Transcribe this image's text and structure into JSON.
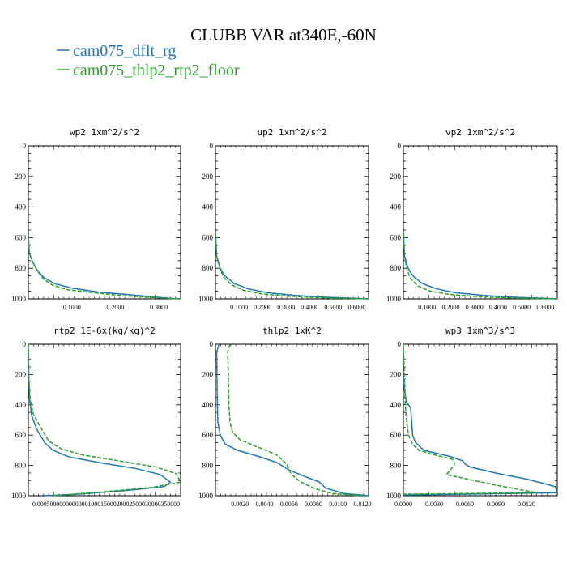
{
  "title": "CLUBB VAR at340E,-60N",
  "legend": [
    {
      "label": "cam075_dflt_rg",
      "color": "#1f77b4"
    },
    {
      "label": "cam075_thlp2_rtp2_floor",
      "color": "#2ca02c"
    }
  ],
  "chart_data": [
    {
      "type": "line",
      "title": "wp2  1xm^2/s^2",
      "yticks": [
        "0",
        "200",
        "400",
        "600",
        "800",
        "1000"
      ],
      "xticks": [
        "0.1000",
        "0.2000",
        "0.3000"
      ],
      "xlim": [
        0,
        0.35
      ],
      "ylim": [
        0,
        1000
      ],
      "series": [
        {
          "name": "cam075_dflt_rg",
          "style": "solid",
          "x": [
            0,
            0.002,
            0.01,
            0.02,
            0.035,
            0.06,
            0.1,
            0.16,
            0.24,
            0.3,
            0.34
          ],
          "y": [
            580,
            700,
            760,
            810,
            860,
            900,
            930,
            955,
            975,
            990,
            1000
          ]
        },
        {
          "name": "cam075_thlp2_rtp2_floor",
          "style": "dashed",
          "x": [
            0,
            0.002,
            0.01,
            0.02,
            0.035,
            0.055,
            0.09,
            0.15,
            0.22,
            0.3,
            0.35
          ],
          "y": [
            580,
            700,
            760,
            815,
            870,
            910,
            940,
            960,
            980,
            993,
            1000
          ]
        }
      ]
    },
    {
      "type": "line",
      "title": "up2  1xm^2/s^2",
      "yticks": [
        "0",
        "200",
        "400",
        "600",
        "800",
        "1000"
      ],
      "xticks": [
        "0.1000",
        "0.2000",
        "0.3000",
        "0.4000",
        "0.5000",
        "0.6000"
      ],
      "xlim": [
        0,
        0.65
      ],
      "ylim": [
        0,
        1000
      ],
      "series": [
        {
          "name": "cam075_dflt_rg",
          "style": "solid",
          "x": [
            0,
            0.005,
            0.02,
            0.04,
            0.08,
            0.14,
            0.22,
            0.34,
            0.48,
            0.6,
            0.65
          ],
          "y": [
            570,
            720,
            800,
            850,
            900,
            935,
            960,
            978,
            990,
            997,
            1000
          ]
        },
        {
          "name": "cam075_thlp2_rtp2_floor",
          "style": "dashed",
          "x": [
            0,
            0.005,
            0.02,
            0.035,
            0.07,
            0.12,
            0.2,
            0.32,
            0.46,
            0.58,
            0.65
          ],
          "y": [
            570,
            720,
            805,
            860,
            910,
            945,
            968,
            983,
            993,
            998,
            1000
          ]
        }
      ]
    },
    {
      "type": "line",
      "title": "vp2  1xm^2/s^2",
      "yticks": [
        "0",
        "200",
        "400",
        "600",
        "800",
        "1000"
      ],
      "xticks": [
        "0.1000",
        "0.2000",
        "0.3000",
        "0.4000",
        "0.5000",
        "0.6000"
      ],
      "xlim": [
        0,
        0.65
      ],
      "ylim": [
        0,
        1000
      ],
      "series": [
        {
          "name": "cam075_dflt_rg",
          "style": "solid",
          "x": [
            0,
            0.005,
            0.02,
            0.04,
            0.08,
            0.14,
            0.22,
            0.34,
            0.48,
            0.6,
            0.65
          ],
          "y": [
            570,
            720,
            800,
            850,
            900,
            935,
            960,
            978,
            990,
            997,
            1000
          ]
        },
        {
          "name": "cam075_thlp2_rtp2_floor",
          "style": "dashed",
          "x": [
            0,
            0.005,
            0.015,
            0.03,
            0.06,
            0.11,
            0.19,
            0.3,
            0.44,
            0.57,
            0.65
          ],
          "y": [
            570,
            720,
            810,
            865,
            915,
            948,
            970,
            984,
            993,
            998,
            1000
          ]
        }
      ]
    },
    {
      "type": "line",
      "title": "rtp2  1E-6x(kg/kg)^2",
      "yticks": [
        "0",
        "200",
        "400",
        "600",
        "800",
        "1000"
      ],
      "xticks": [
        "0.00050",
        "0.00010",
        "0.00015",
        "0.00020",
        "0.00025",
        "0.00030",
        "0.00035"
      ],
      "xticks_display": "0.000500000000000010001500020002500030000350000",
      "xlim": [
        0,
        0.00037
      ],
      "ylim": [
        0,
        1000
      ],
      "series": [
        {
          "name": "cam075_dflt_rg",
          "style": "solid",
          "x": [
            0,
            1e-06,
            3e-06,
            8e-06,
            2e-05,
            4e-05,
            6e-05,
            0.0001,
            0.00018,
            0.00026,
            0.00032,
            0.000345,
            0.00033,
            0.00024,
            0.00012,
            4e-05
          ],
          "y": [
            0,
            200,
            360,
            470,
            560,
            650,
            700,
            745,
            785,
            820,
            860,
            910,
            940,
            965,
            990,
            1000
          ]
        },
        {
          "name": "cam075_thlp2_rtp2_floor",
          "style": "dashed",
          "x": [
            0,
            1e-06,
            4e-06,
            1.2e-05,
            3e-05,
            5e-05,
            8e-05,
            0.00013,
            0.00022,
            0.00031,
            0.00036,
            0.00037,
            0.0003,
            0.00018,
            6e-05
          ],
          "y": [
            0,
            200,
            360,
            460,
            550,
            640,
            690,
            730,
            770,
            810,
            855,
            910,
            945,
            975,
            1000
          ]
        }
      ]
    },
    {
      "type": "line",
      "title": "thlp2  1xK^2",
      "yticks": [
        "0",
        "200",
        "400",
        "600",
        "800",
        "1000"
      ],
      "xticks": [
        "0.0020",
        "0.0040",
        "0.0060",
        "0.0080",
        "0.0100",
        "0.0120"
      ],
      "xlim": [
        0,
        0.0125
      ],
      "ylim": [
        0,
        1000
      ],
      "series": [
        {
          "name": "cam075_dflt_rg",
          "style": "solid",
          "x": [
            0.0003,
            0.0001,
            0.00012,
            0.00015,
            0.0002,
            0.0004,
            0.0008,
            0.0018,
            0.0035,
            0.005,
            0.006,
            0.0072,
            0.0085,
            0.009,
            0.0105,
            0.0125
          ],
          "y": [
            0,
            50,
            200,
            400,
            520,
            600,
            660,
            700,
            740,
            780,
            830,
            870,
            910,
            950,
            985,
            1000
          ]
        },
        {
          "name": "cam075_thlp2_rtp2_floor",
          "style": "dashed",
          "x": [
            0.0012,
            0.001,
            0.00105,
            0.0011,
            0.0012,
            0.0014,
            0.002,
            0.0035,
            0.005,
            0.0058,
            0.0062,
            0.007,
            0.008,
            0.0095,
            0.012
          ],
          "y": [
            0,
            50,
            200,
            400,
            520,
            580,
            630,
            680,
            730,
            790,
            860,
            910,
            950,
            985,
            1000
          ]
        }
      ]
    },
    {
      "type": "line",
      "title": "wp3  1xm^3/s^3",
      "yticks": [
        "0",
        "200",
        "400",
        "600",
        "800",
        "1000"
      ],
      "xticks": [
        "0.0000",
        "0.0030",
        "0.0060",
        "0.0090",
        "0.0120"
      ],
      "xlim": [
        0,
        0.015
      ],
      "ylim": [
        0,
        1000
      ],
      "series": [
        {
          "name": "cam075_dflt_rg",
          "style": "solid",
          "x": [
            0,
            0.0001,
            0.0003,
            0.0007,
            0.0008,
            0.0009,
            0.0012,
            0.002,
            0.0045,
            0.0058,
            0.006,
            0.0065,
            0.009,
            0.012,
            0.0148,
            0.015,
            0.0
          ],
          "y": [
            200,
            300,
            380,
            420,
            500,
            600,
            650,
            700,
            740,
            770,
            790,
            810,
            850,
            890,
            940,
            980,
            995
          ]
        },
        {
          "name": "cam075_thlp2_rtp2_floor",
          "style": "dashed",
          "x": [
            0,
            0.0001,
            0.0002,
            0.0003,
            0.0005,
            0.0009,
            0.0015,
            0.003,
            0.0048,
            0.005,
            0.0047,
            0.0042,
            0.0062,
            0.009,
            0.013,
            0.0,
            0.0
          ],
          "y": [
            0,
            200,
            400,
            500,
            600,
            660,
            700,
            730,
            760,
            790,
            820,
            860,
            890,
            930,
            980,
            990,
            1000
          ]
        }
      ]
    }
  ]
}
